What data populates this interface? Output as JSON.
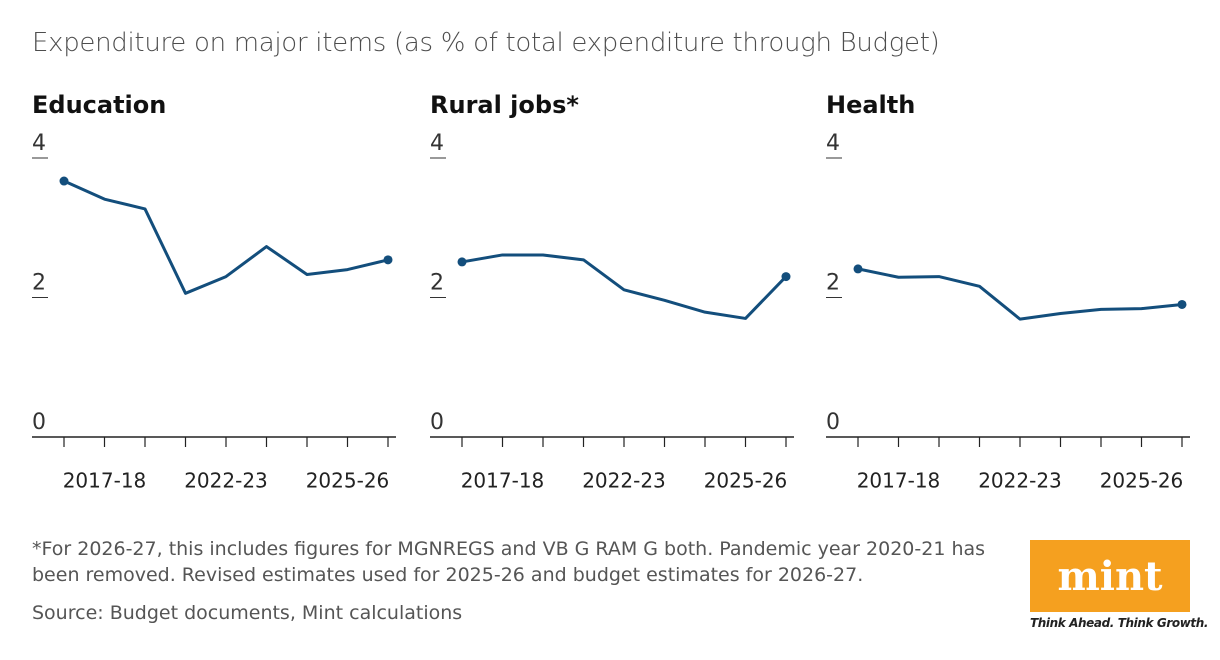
{
  "header": {
    "title": "Expenditure on major items (as % of total expenditure through Budget)"
  },
  "chart_data": [
    {
      "type": "line",
      "title": "Education",
      "categories": [
        null,
        "2017-18",
        null,
        null,
        "2022-23",
        null,
        null,
        "2025-26",
        null
      ],
      "values": [
        3.67,
        3.41,
        3.27,
        2.06,
        2.3,
        2.73,
        2.33,
        2.4,
        2.54
      ],
      "color": "#134e7c",
      "ylim": [
        0,
        4
      ],
      "yticks": [
        0,
        2,
        4
      ]
    },
    {
      "type": "line",
      "title": "Rural jobs*",
      "categories": [
        null,
        "2017-18",
        null,
        null,
        "2022-23",
        null,
        null,
        "2025-26",
        null
      ],
      "values": [
        2.51,
        2.61,
        2.61,
        2.54,
        2.11,
        1.96,
        1.79,
        1.7,
        2.3
      ],
      "color": "#134e7c",
      "ylim": [
        0,
        4
      ],
      "yticks": [
        0,
        2,
        4
      ]
    },
    {
      "type": "line",
      "title": "Health",
      "categories": [
        null,
        "2017-18",
        null,
        null,
        "2022-23",
        null,
        null,
        "2025-26",
        null
      ],
      "values": [
        2.41,
        2.29,
        2.3,
        2.16,
        1.69,
        1.77,
        1.83,
        1.84,
        1.9
      ],
      "color": "#134e7c",
      "ylim": [
        0,
        4
      ],
      "yticks": [
        0,
        2,
        4
      ]
    }
  ],
  "footnote": "*For 2026-27, this includes figures for MGNREGS and VB G RAM G both. Pandemic year 2020-21 has been removed. Revised estimates used for 2025-26 and budget estimates for 2026-27.",
  "source": "Source: Budget documents, Mint calculations",
  "logo": {
    "name": "mint",
    "tagline": "Think Ahead. Think Growth."
  }
}
